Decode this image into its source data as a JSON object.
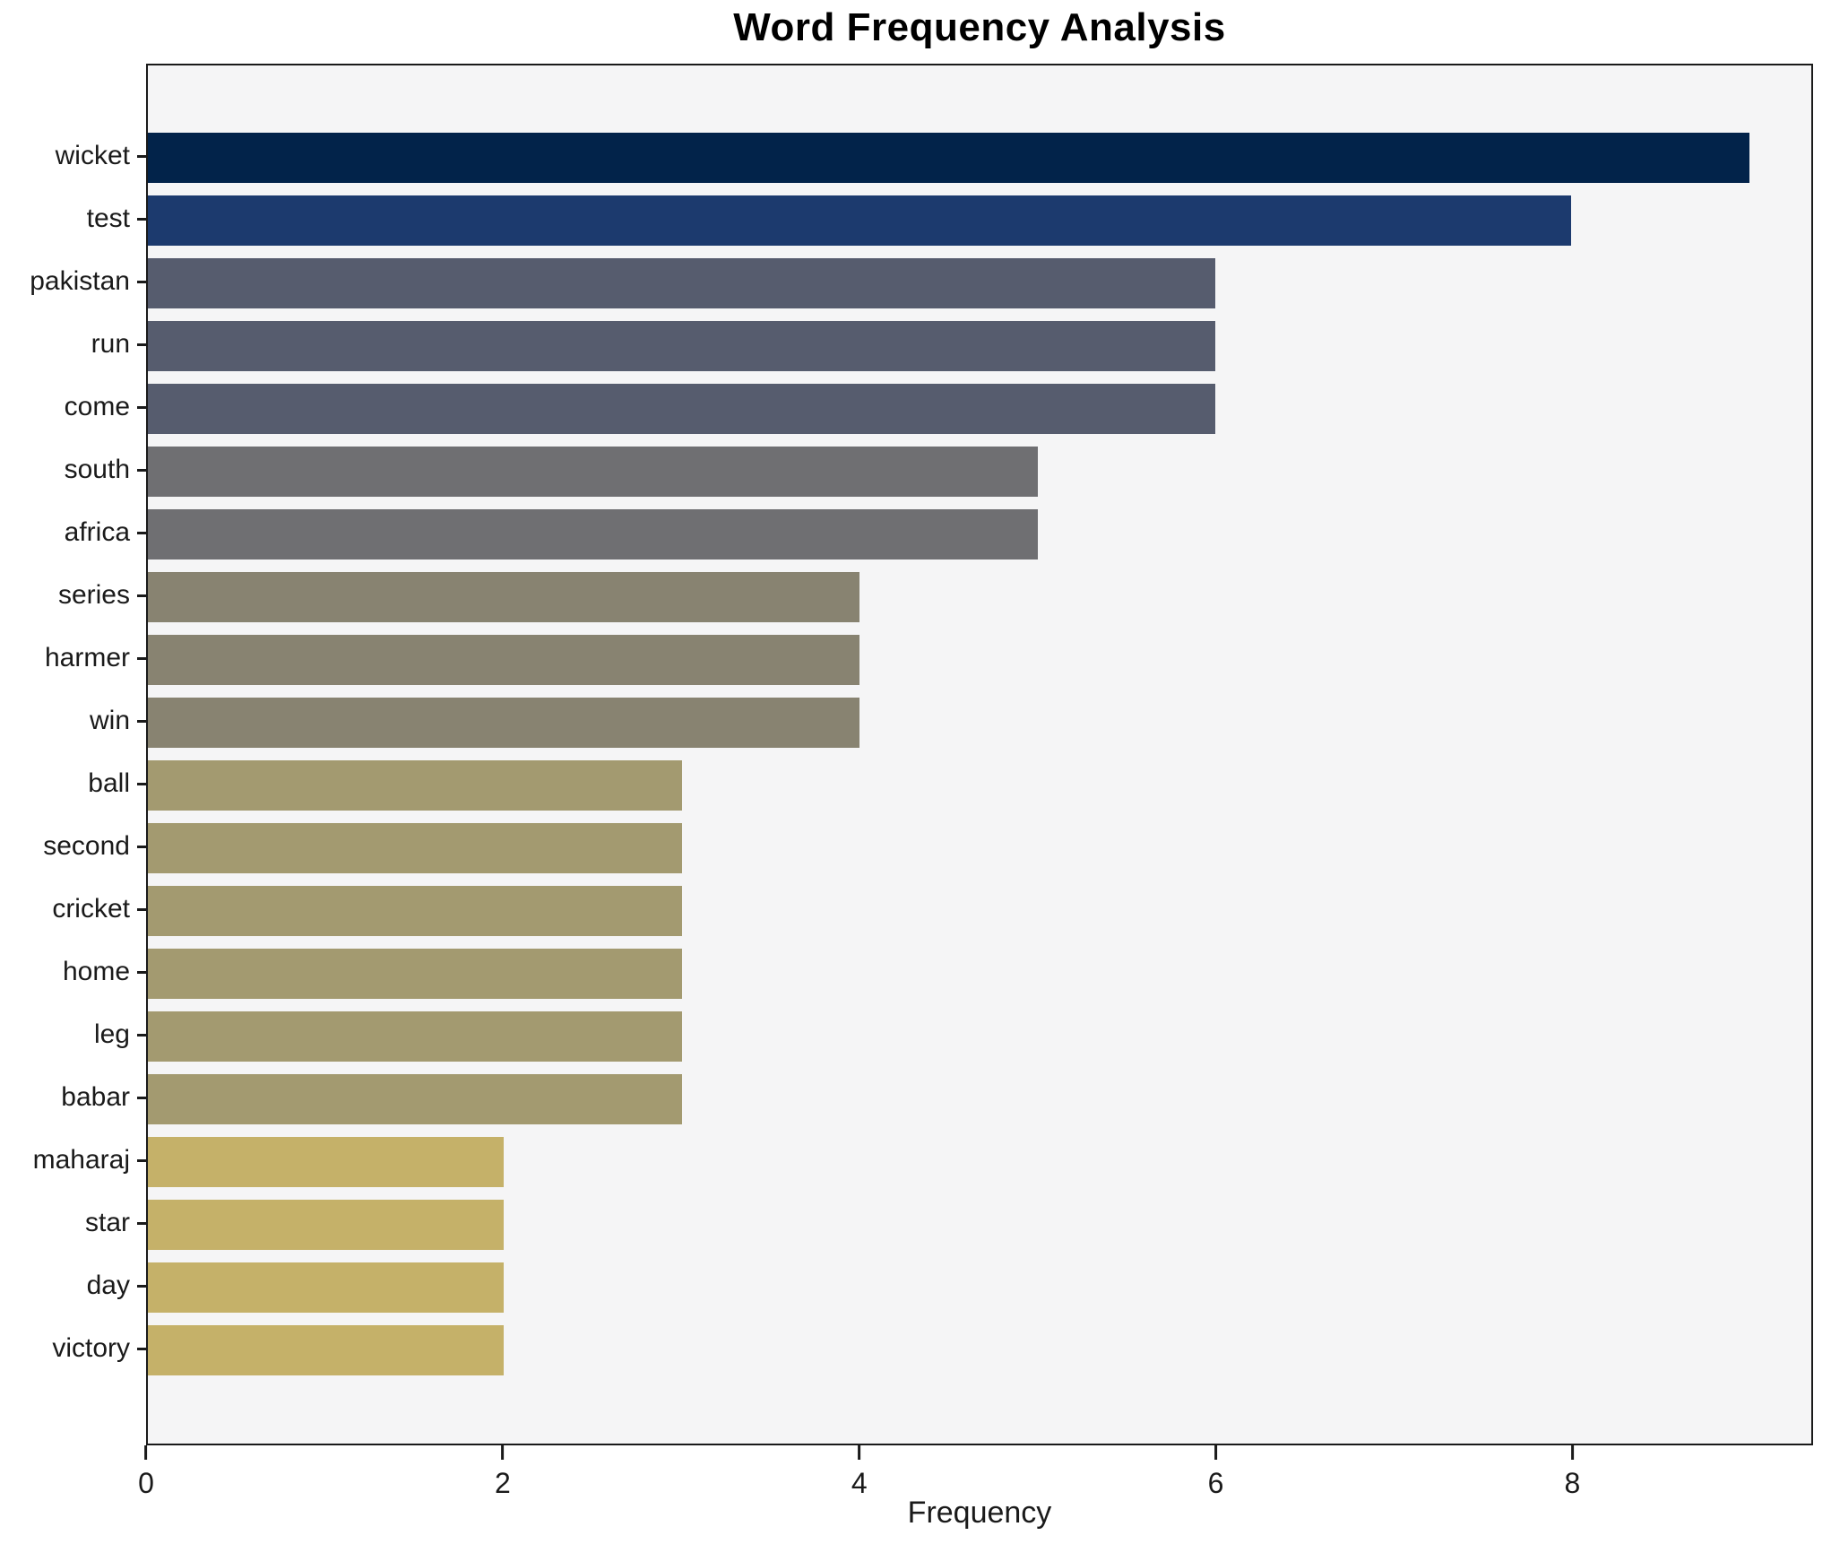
{
  "title": "Word Frequency Analysis",
  "xlabel": "Frequency",
  "chart_data": {
    "type": "bar",
    "orientation": "horizontal",
    "title": "Word Frequency Analysis",
    "xlabel": "Frequency",
    "ylabel": "",
    "categories": [
      "wicket",
      "test",
      "pakistan",
      "run",
      "come",
      "south",
      "africa",
      "series",
      "harmer",
      "win",
      "ball",
      "second",
      "cricket",
      "home",
      "leg",
      "babar",
      "maharaj",
      "star",
      "day",
      "victory"
    ],
    "values": [
      9,
      8,
      6,
      6,
      6,
      5,
      5,
      4,
      4,
      4,
      3,
      3,
      3,
      3,
      3,
      3,
      2,
      2,
      2,
      2
    ],
    "bar_colors": [
      "#02234a",
      "#1c3a6e",
      "#565c6e",
      "#565c6e",
      "#565c6e",
      "#6f6f72",
      "#6f6f72",
      "#888371",
      "#888371",
      "#888371",
      "#a39a70",
      "#a39a70",
      "#a39a70",
      "#a39a70",
      "#a39a70",
      "#a39a70",
      "#c5b169",
      "#c5b169",
      "#c5b169",
      "#c5b169"
    ],
    "xlim": [
      0,
      9.35
    ],
    "x_ticks": [
      0,
      2,
      4,
      6,
      8
    ],
    "grid": false,
    "legend": "none",
    "plot_background": "#f5f5f6",
    "figure_background": "#ffffff",
    "spine_color": "#1a1a1a"
  }
}
